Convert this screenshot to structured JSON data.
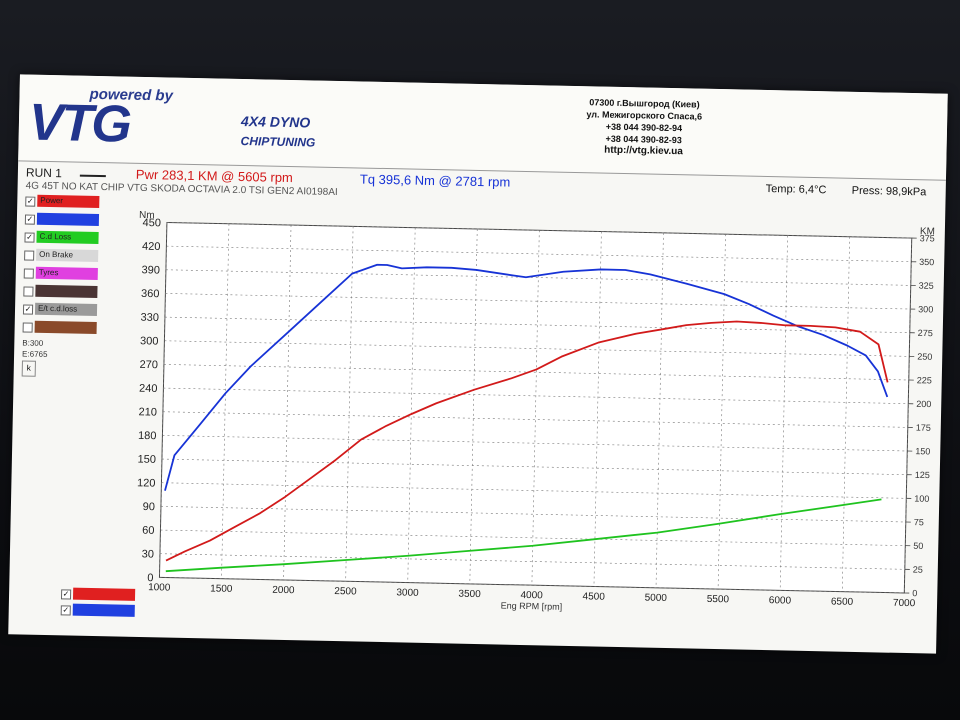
{
  "header": {
    "powered_by": "powered by",
    "brand": "VTG",
    "product_line_1": "4X4 DYNO",
    "product_line_2": "CHIPTUNING",
    "address_lines": [
      "07300 г.Вышгород (Киев)",
      "ул. Межигорского Спаса,6",
      "+38 044 390-82-94",
      "+38 044 390-82-93"
    ],
    "website": "http://vtg.kiev.ua"
  },
  "info": {
    "run": "RUN 1",
    "power": "Pwr  283,1 KM @ 5605 rpm",
    "torque": "Tq 395,6 Nm @ 2781 rpm",
    "temp": "Temp: 6,4°C",
    "pressure": "Press: 98,9kPa",
    "subtitle": "4G 45T  NO KAT CHIP VTG SKODA OCTAVIA 2.0 TSI GEN2 AI0198AI"
  },
  "sidebar": {
    "legend": [
      {
        "label": "Power",
        "color": "#e02020",
        "checked": true
      },
      {
        "label": "",
        "color": "#2040e0",
        "checked": true
      },
      {
        "label": "C.d Loss",
        "color": "#22cc22",
        "checked": true
      },
      {
        "label": "On Brake",
        "color": "#d8d8d8",
        "checked": false
      },
      {
        "label": "Tyres",
        "color": "#e040e0",
        "checked": false
      },
      {
        "label": "",
        "color": "#4a3434",
        "checked": false
      },
      {
        "label": "E/t c.d.loss",
        "color": "#9a9a9a",
        "checked": true
      },
      {
        "label": "",
        "color": "#8a4a2a",
        "checked": false
      }
    ],
    "b_value": "B:300",
    "e_value": "E:6765",
    "k_button": "k",
    "bottom_legend": [
      {
        "color": "#e02020",
        "checked": true
      },
      {
        "color": "#2040e0",
        "checked": true
      }
    ]
  },
  "chart_data": {
    "type": "line",
    "xlabel": "Eng RPM [rpm]",
    "ylabel_left": "Nm",
    "ylabel_right": "KM",
    "xlim": [
      1000,
      7000
    ],
    "ylim_left": [
      0,
      450
    ],
    "ylim_right": [
      0,
      375
    ],
    "x_ticks": [
      1000,
      1500,
      2000,
      2500,
      3000,
      3500,
      4000,
      4500,
      5000,
      5500,
      6000,
      6500,
      7000
    ],
    "y_left_ticks": [
      0,
      30,
      60,
      90,
      120,
      150,
      180,
      210,
      240,
      270,
      300,
      330,
      360,
      390,
      420,
      450
    ],
    "y_right_ticks": [
      0,
      25,
      50,
      75,
      100,
      125,
      150,
      175,
      200,
      225,
      250,
      275,
      300,
      325,
      350,
      375
    ],
    "grid": true,
    "series": [
      {
        "name": "Tq",
        "axis": "left",
        "color": "#1733d6",
        "points": [
          [
            1030,
            110
          ],
          [
            1100,
            155
          ],
          [
            1300,
            195
          ],
          [
            1500,
            235
          ],
          [
            1700,
            270
          ],
          [
            2000,
            315
          ],
          [
            2300,
            360
          ],
          [
            2500,
            390
          ],
          [
            2700,
            402
          ],
          [
            2781,
            402
          ],
          [
            2900,
            398
          ],
          [
            3100,
            400
          ],
          [
            3300,
            400
          ],
          [
            3500,
            398
          ],
          [
            3800,
            392
          ],
          [
            3900,
            390
          ],
          [
            4200,
            398
          ],
          [
            4500,
            402
          ],
          [
            4700,
            402
          ],
          [
            4900,
            397
          ],
          [
            5200,
            386
          ],
          [
            5500,
            374
          ],
          [
            5700,
            362
          ],
          [
            5900,
            348
          ],
          [
            6100,
            335
          ],
          [
            6300,
            325
          ],
          [
            6500,
            312
          ],
          [
            6650,
            300
          ],
          [
            6750,
            280
          ],
          [
            6830,
            248
          ]
        ]
      },
      {
        "name": "Pwr",
        "axis": "right",
        "color": "#d21a1a",
        "points": [
          [
            1050,
            18
          ],
          [
            1200,
            28
          ],
          [
            1400,
            40
          ],
          [
            1600,
            55
          ],
          [
            1800,
            70
          ],
          [
            2000,
            88
          ],
          [
            2200,
            108
          ],
          [
            2400,
            128
          ],
          [
            2600,
            150
          ],
          [
            2800,
            165
          ],
          [
            3000,
            178
          ],
          [
            3200,
            190
          ],
          [
            3500,
            205
          ],
          [
            3800,
            218
          ],
          [
            4000,
            228
          ],
          [
            4200,
            242
          ],
          [
            4500,
            258
          ],
          [
            4800,
            268
          ],
          [
            5000,
            273
          ],
          [
            5200,
            278
          ],
          [
            5400,
            281
          ],
          [
            5605,
            283
          ],
          [
            5800,
            282
          ],
          [
            6000,
            280
          ],
          [
            6200,
            280
          ],
          [
            6400,
            279
          ],
          [
            6600,
            275
          ],
          [
            6750,
            262
          ],
          [
            6830,
            222
          ]
        ]
      },
      {
        "name": "C.d Loss",
        "axis": "left",
        "color": "#1fc31f",
        "points": [
          [
            1050,
            8
          ],
          [
            1500,
            14
          ],
          [
            2000,
            20
          ],
          [
            2500,
            27
          ],
          [
            3000,
            34
          ],
          [
            3500,
            42
          ],
          [
            4000,
            50
          ],
          [
            4500,
            60
          ],
          [
            5000,
            70
          ],
          [
            5500,
            83
          ],
          [
            6000,
            97
          ],
          [
            6500,
            110
          ],
          [
            6800,
            118
          ]
        ]
      }
    ]
  },
  "colors": {
    "power": "#d21a1a",
    "torque": "#1733d6",
    "loss": "#1fc31f",
    "brand": "#22358c"
  }
}
